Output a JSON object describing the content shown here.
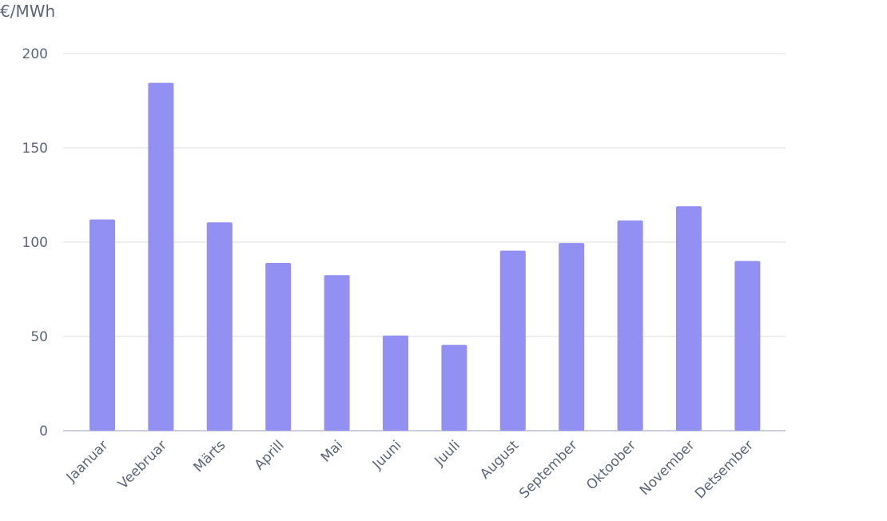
{
  "chart_data": {
    "type": "bar",
    "unit_label": "€/MWh",
    "categories": [
      "Jaanuar",
      "Veebruar",
      "Märts",
      "Aprill",
      "Mai",
      "Juuni",
      "Juuli",
      "August",
      "September",
      "Oktoober",
      "November",
      "Detsember"
    ],
    "values": [
      112,
      184.5,
      110.5,
      89,
      82.5,
      50.5,
      45.5,
      95.5,
      99.5,
      111.5,
      119,
      90
    ],
    "yticks": [
      0,
      50,
      100,
      150,
      200
    ],
    "ylim": [
      0,
      200
    ],
    "grid": true,
    "colors": {
      "bar": "#9390f3",
      "grid": "#e6e8ec",
      "baseline": "#b9bdc8",
      "text": "#5b6478"
    }
  }
}
